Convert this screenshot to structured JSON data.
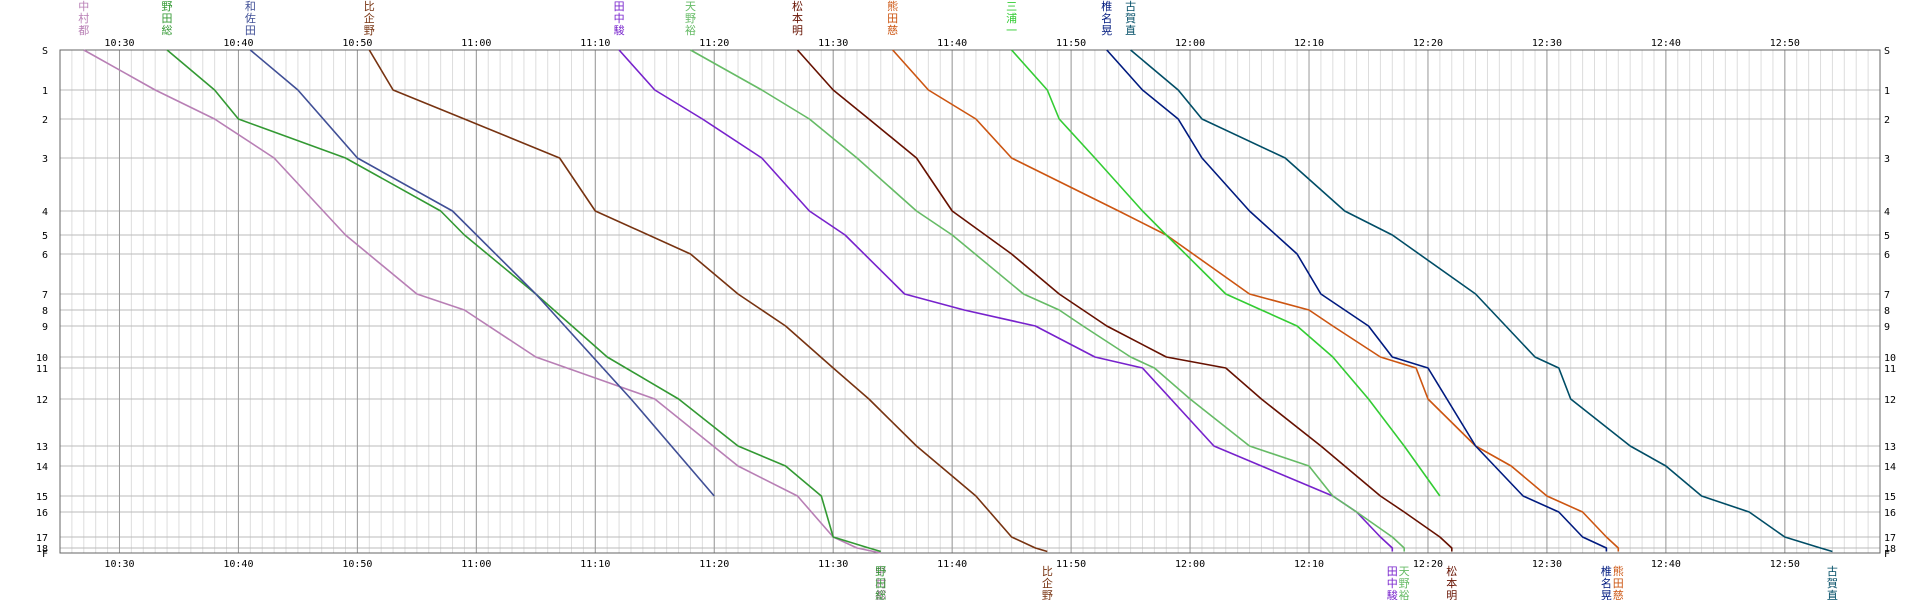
{
  "chart_data": {
    "type": "line",
    "title": "",
    "xlabel": "",
    "ylabel": "",
    "x_ticks": [
      "10:30",
      "10:40",
      "10:50",
      "11:00",
      "11:10",
      "11:20",
      "11:30",
      "11:40",
      "11:50",
      "12:00",
      "12:10",
      "12:20",
      "12:30",
      "12:40",
      "12:50"
    ],
    "y_stations": [
      "S",
      "1",
      "2",
      "3",
      "4",
      "5",
      "6",
      "7",
      "8",
      "9",
      "10",
      "11",
      "12",
      "13",
      "14",
      "15",
      "16",
      "17",
      "18",
      "F"
    ],
    "xlim": [
      "10:25",
      "12:58"
    ],
    "ylim": [
      0,
      19
    ],
    "grid": true,
    "series": [
      {
        "name": "中村都",
        "color": "#b87fb5",
        "points": [
          [
            "10:27",
            0
          ],
          [
            "10:33",
            1
          ],
          [
            "10:38",
            2
          ],
          [
            "10:43",
            3
          ],
          [
            "10:49",
            5
          ],
          [
            "10:55",
            7
          ],
          [
            "10:59",
            8
          ],
          [
            "11:05",
            10
          ],
          [
            "11:15",
            12
          ],
          [
            "11:22",
            14
          ],
          [
            "11:27",
            15
          ],
          [
            "11:30",
            17
          ],
          [
            "11:32",
            18
          ],
          [
            "11:34",
            19
          ]
        ]
      },
      {
        "name": "野田総",
        "color": "#339933",
        "points": [
          [
            "10:34",
            0
          ],
          [
            "10:38",
            1
          ],
          [
            "10:40",
            2
          ],
          [
            "10:49",
            3
          ],
          [
            "10:57",
            4
          ],
          [
            "10:59",
            5
          ],
          [
            "11:05",
            7
          ],
          [
            "11:11",
            10
          ],
          [
            "11:17",
            12
          ],
          [
            "11:22",
            13
          ],
          [
            "11:26",
            14
          ],
          [
            "11:29",
            15
          ],
          [
            "11:30",
            17
          ],
          [
            "11:33",
            18
          ],
          [
            "11:34",
            18.7
          ]
        ]
      },
      {
        "name": "和佐田",
        "color": "#404f96",
        "points": [
          [
            "10:41",
            0
          ],
          [
            "10:45",
            1
          ],
          [
            "10:50",
            3
          ],
          [
            "10:58",
            4
          ],
          [
            "11:05",
            7
          ],
          [
            "11:13",
            12
          ],
          [
            "11:20",
            15
          ]
        ]
      },
      {
        "name": "比企野",
        "color": "#773311",
        "points": [
          [
            "10:51",
            0
          ],
          [
            "10:53",
            1
          ],
          [
            "10:59",
            2
          ],
          [
            "11:07",
            3
          ],
          [
            "11:10",
            4
          ],
          [
            "11:18",
            6
          ],
          [
            "11:22",
            7
          ],
          [
            "11:26",
            9
          ],
          [
            "11:30",
            11
          ],
          [
            "11:33",
            12
          ],
          [
            "11:37",
            13
          ],
          [
            "11:42",
            15
          ],
          [
            "11:45",
            17
          ],
          [
            "11:47",
            18
          ],
          [
            "11:48",
            18.7
          ]
        ]
      },
      {
        "name": "田中駿",
        "color": "#7722cc",
        "points": [
          [
            "11:12",
            0
          ],
          [
            "11:15",
            1
          ],
          [
            "11:19",
            2
          ],
          [
            "11:24",
            3
          ],
          [
            "11:28",
            4
          ],
          [
            "11:31",
            5
          ],
          [
            "11:36",
            7
          ],
          [
            "11:41",
            8
          ],
          [
            "11:47",
            9
          ],
          [
            "11:52",
            10
          ],
          [
            "11:56",
            11
          ],
          [
            "12:02",
            13
          ],
          [
            "12:12",
            15
          ],
          [
            "12:14",
            16
          ],
          [
            "12:16",
            17
          ],
          [
            "12:17",
            18
          ],
          [
            "12:17",
            18.7
          ]
        ]
      },
      {
        "name": "天野裕",
        "color": "#66bb66",
        "points": [
          [
            "11:18",
            0
          ],
          [
            "11:24",
            1
          ],
          [
            "11:28",
            2
          ],
          [
            "11:32",
            3
          ],
          [
            "11:37",
            4
          ],
          [
            "11:40",
            5
          ],
          [
            "11:46",
            7
          ],
          [
            "11:49",
            8
          ],
          [
            "11:51",
            9
          ],
          [
            "11:55",
            10
          ],
          [
            "11:57",
            11
          ],
          [
            "12:00",
            12
          ],
          [
            "12:05",
            13
          ],
          [
            "12:10",
            14
          ],
          [
            "12:12",
            15
          ],
          [
            "12:14",
            16
          ],
          [
            "12:17",
            17
          ],
          [
            "12:18",
            18
          ],
          [
            "12:18",
            18.7
          ]
        ]
      },
      {
        "name": "松本明",
        "color": "#661100",
        "points": [
          [
            "11:27",
            0
          ],
          [
            "11:30",
            1
          ],
          [
            "11:33",
            2
          ],
          [
            "11:37",
            3
          ],
          [
            "11:40",
            4
          ],
          [
            "11:45",
            6
          ],
          [
            "11:49",
            7
          ],
          [
            "11:51",
            8
          ],
          [
            "11:53",
            9
          ],
          [
            "11:58",
            10
          ],
          [
            "12:03",
            11
          ],
          [
            "12:06",
            12
          ],
          [
            "12:11",
            13
          ],
          [
            "12:13",
            14
          ],
          [
            "12:16",
            15
          ],
          [
            "12:18",
            16
          ],
          [
            "12:21",
            17
          ],
          [
            "12:22",
            18
          ],
          [
            "12:22",
            18.7
          ]
        ]
      },
      {
        "name": "熊田慈",
        "color": "#cc5511",
        "points": [
          [
            "11:35",
            0
          ],
          [
            "11:38",
            1
          ],
          [
            "11:42",
            2
          ],
          [
            "11:45",
            3
          ],
          [
            "11:54",
            4
          ],
          [
            "11:58",
            5
          ],
          [
            "12:05",
            7
          ],
          [
            "12:10",
            8
          ],
          [
            "12:12",
            9
          ],
          [
            "12:16",
            10
          ],
          [
            "12:19",
            11
          ],
          [
            "12:20",
            12
          ],
          [
            "12:24",
            13
          ],
          [
            "12:27",
            14
          ],
          [
            "12:30",
            15
          ],
          [
            "12:33",
            16
          ],
          [
            "12:35",
            17
          ],
          [
            "12:36",
            18
          ],
          [
            "12:36",
            18.7
          ]
        ]
      },
      {
        "name": "三浦一",
        "color": "#33cc33",
        "points": [
          [
            "11:45",
            0
          ],
          [
            "11:48",
            1
          ],
          [
            "11:49",
            2
          ],
          [
            "11:52",
            3
          ],
          [
            "11:56",
            4
          ],
          [
            "11:58",
            5
          ],
          [
            "12:03",
            7
          ],
          [
            "12:06",
            8
          ],
          [
            "12:09",
            9
          ],
          [
            "12:12",
            10
          ],
          [
            "12:15",
            12
          ],
          [
            "12:18",
            13
          ],
          [
            "12:21",
            15
          ]
        ]
      },
      {
        "name": "椎名晃",
        "color": "#001a7f",
        "points": [
          [
            "11:53",
            0
          ],
          [
            "11:56",
            1
          ],
          [
            "11:59",
            2
          ],
          [
            "12:01",
            3
          ],
          [
            "12:05",
            4
          ],
          [
            "12:09",
            6
          ],
          [
            "12:11",
            7
          ],
          [
            "12:13",
            8
          ],
          [
            "12:15",
            9
          ],
          [
            "12:17",
            10
          ],
          [
            "12:20",
            11
          ],
          [
            "12:24",
            13
          ],
          [
            "12:28",
            15
          ],
          [
            "12:31",
            16
          ],
          [
            "12:33",
            17
          ],
          [
            "12:35",
            18
          ],
          [
            "12:35",
            18.7
          ]
        ]
      },
      {
        "name": "古賀直",
        "color": "#004d66",
        "points": [
          [
            "11:55",
            0
          ],
          [
            "11:59",
            1
          ],
          [
            "12:01",
            2
          ],
          [
            "12:08",
            3
          ],
          [
            "12:13",
            4
          ],
          [
            "12:17",
            5
          ],
          [
            "12:24",
            7
          ],
          [
            "12:29",
            10
          ],
          [
            "12:31",
            11
          ],
          [
            "12:32",
            12
          ],
          [
            "12:37",
            13
          ],
          [
            "12:40",
            14
          ],
          [
            "12:43",
            15
          ],
          [
            "12:47",
            16
          ],
          [
            "12:50",
            17
          ],
          [
            "12:53",
            18
          ],
          [
            "12:54",
            18.7
          ]
        ]
      }
    ],
    "top_labels_order": [
      "中村都",
      "野田総",
      "和佐田",
      "比企野",
      "田中駿",
      "天野裕",
      "松本明",
      "熊田慈",
      "三浦一",
      "椎名晃",
      "古賀直"
    ]
  }
}
